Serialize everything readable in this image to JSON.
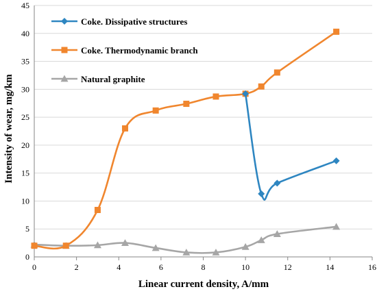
{
  "colors": {
    "background": "#ffffff",
    "grid": "#d9d9d9",
    "axis": "#868686"
  },
  "chart_data": {
    "type": "line",
    "title": "",
    "xlabel": "Linear current density, A/mm",
    "ylabel": "Intensity of wear, mg/km",
    "xlim": [
      0,
      16
    ],
    "ylim": [
      0,
      45
    ],
    "xticks": [
      0,
      2,
      4,
      6,
      8,
      10,
      12,
      14,
      16
    ],
    "yticks": [
      0,
      5,
      10,
      15,
      20,
      25,
      30,
      35,
      40,
      45
    ],
    "grid": {
      "x": false,
      "y": true
    },
    "smooth": true,
    "legend_position": "top-left",
    "series": [
      {
        "name": "Coke. Dissipative structures",
        "color": "#2e86c1",
        "marker": "diamond",
        "x": [
          10.0,
          10.75,
          11.5,
          14.3
        ],
        "y": [
          29.2,
          11.3,
          13.2,
          17.2
        ]
      },
      {
        "name": "Coke. Thermodynamic branch",
        "color": "#f0862e",
        "marker": "square",
        "x": [
          0,
          1.5,
          3.0,
          4.3,
          5.75,
          7.2,
          8.6,
          10.0,
          10.75,
          11.5,
          14.3
        ],
        "y": [
          2.0,
          2.0,
          8.4,
          23.0,
          26.2,
          27.4,
          28.7,
          29.2,
          30.5,
          33.0,
          40.3
        ]
      },
      {
        "name": "Natural graphite",
        "color": "#a6a6a6",
        "marker": "triangle",
        "x": [
          0,
          1.5,
          3.0,
          4.3,
          5.75,
          7.2,
          8.6,
          10.0,
          10.75,
          11.5,
          14.3
        ],
        "y": [
          2.2,
          2.0,
          2.1,
          2.5,
          1.6,
          0.8,
          0.8,
          1.8,
          3.0,
          4.1,
          5.4
        ]
      }
    ]
  }
}
